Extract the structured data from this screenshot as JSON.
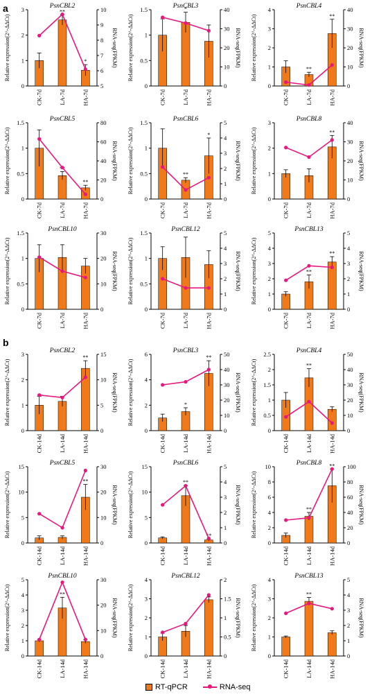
{
  "panels": {
    "a": "a",
    "b": "b"
  },
  "legend": {
    "bar": "RT-qPCR",
    "line": "RNA-seq"
  },
  "colors": {
    "bar": "#f07a1a",
    "line": "#e8177e",
    "axis": "#000000"
  },
  "left_axis_label": "Relative expression(2^-ΔΔCt)",
  "right_axis_label": "RNA-seq(FPKM)",
  "chart_data": [
    {
      "panel": "a",
      "type": "bar",
      "title": "PsnCBL2",
      "categories": [
        "CK-7d",
        "LA-7d",
        "HA-7d"
      ],
      "bars": [
        1.0,
        2.6,
        0.62
      ],
      "errors": [
        0.3,
        0.2,
        0.22
      ],
      "sig": [
        "",
        "**",
        "*"
      ],
      "ylim": [
        0,
        3
      ],
      "yticks": [
        0,
        1,
        2,
        3
      ],
      "y2lim": [
        5,
        10
      ],
      "y2ticks": [
        5,
        6,
        7,
        8,
        9,
        10
      ],
      "line": [
        8.3,
        9.7,
        6.1
      ]
    },
    {
      "panel": "a",
      "type": "bar",
      "title": "PsnCBL3",
      "categories": [
        "CK-7d",
        "LA-7d",
        "HA-7d"
      ],
      "bars": [
        1.0,
        1.25,
        0.88
      ],
      "errors": [
        0.32,
        0.2,
        0.32
      ],
      "sig": [
        "",
        "*",
        ""
      ],
      "ylim": [
        0,
        1.5
      ],
      "yticks": [
        0,
        0.5,
        1.0,
        1.5
      ],
      "y2lim": [
        0,
        40
      ],
      "y2ticks": [
        0,
        10,
        20,
        30,
        40
      ],
      "line": [
        36,
        33,
        29
      ]
    },
    {
      "panel": "a",
      "type": "bar",
      "title": "PsnCBL4",
      "categories": [
        "CK-7d",
        "LA-7d",
        "HA-7d"
      ],
      "bars": [
        1.0,
        0.6,
        2.75
      ],
      "errors": [
        0.32,
        0.12,
        0.75
      ],
      "sig": [
        "",
        "**",
        "**"
      ],
      "ylim": [
        0,
        4
      ],
      "yticks": [
        0,
        1,
        2,
        3,
        4
      ],
      "y2lim": [
        0,
        40
      ],
      "y2ticks": [
        0,
        10,
        20,
        30,
        40
      ],
      "line": [
        2,
        0.5,
        11
      ]
    },
    {
      "panel": "a",
      "type": "bar",
      "title": "PsnCBL5",
      "categories": [
        "CK-7d",
        "LA-7d",
        "HA-7d"
      ],
      "bars": [
        1.0,
        0.46,
        0.22
      ],
      "errors": [
        0.36,
        0.08,
        0.05
      ],
      "sig": [
        "",
        "**",
        "**"
      ],
      "ylim": [
        0,
        1.5
      ],
      "yticks": [
        0,
        0.5,
        1.0,
        1.5
      ],
      "y2lim": [
        0,
        80
      ],
      "y2ticks": [
        0,
        20,
        40,
        60,
        80
      ],
      "line": [
        63,
        33,
        5
      ]
    },
    {
      "panel": "a",
      "type": "bar",
      "title": "PsnCBL6",
      "categories": [
        "CK-7d",
        "LA-7d",
        "HA-7d"
      ],
      "bars": [
        1.0,
        0.37,
        0.85
      ],
      "errors": [
        0.38,
        0.05,
        0.35
      ],
      "sig": [
        "",
        "**",
        "*"
      ],
      "ylim": [
        0,
        1.5
      ],
      "yticks": [
        0,
        0.5,
        1.0,
        1.5
      ],
      "y2lim": [
        0,
        5
      ],
      "y2ticks": [
        0,
        1,
        2,
        3,
        4,
        5
      ],
      "line": [
        2.1,
        0.6,
        1.4
      ]
    },
    {
      "panel": "a",
      "type": "bar",
      "title": "PsnCBL8",
      "categories": [
        "CK-7d",
        "LA-7d",
        "HA-7d"
      ],
      "bars": [
        1.0,
        0.92,
        2.05
      ],
      "errors": [
        0.15,
        0.27,
        0.45
      ],
      "sig": [
        "",
        "",
        "**"
      ],
      "ylim": [
        0,
        3
      ],
      "yticks": [
        0,
        1,
        2,
        3
      ],
      "y2lim": [
        0,
        40
      ],
      "y2ticks": [
        0,
        10,
        20,
        30,
        40
      ],
      "line": [
        27,
        22,
        31
      ]
    },
    {
      "panel": "a",
      "type": "bar",
      "title": "PsnCBL10",
      "categories": [
        "CK-7d",
        "LA-7d",
        "HA-7d"
      ],
      "bars": [
        1.0,
        1.02,
        0.85
      ],
      "errors": [
        0.27,
        0.25,
        0.15
      ],
      "sig": [
        "",
        "",
        ""
      ],
      "ylim": [
        0,
        1.5
      ],
      "yticks": [
        0,
        0.5,
        1.0,
        1.5
      ],
      "y2lim": [
        0,
        30
      ],
      "y2ticks": [
        0,
        10,
        20,
        30
      ],
      "line": [
        20.5,
        15,
        12.5
      ]
    },
    {
      "panel": "a",
      "type": "bar",
      "title": "PsnCBL12",
      "categories": [
        "CK-7d",
        "LA-7d",
        "HA-7d"
      ],
      "bars": [
        1.0,
        1.02,
        0.88
      ],
      "errors": [
        0.23,
        0.4,
        0.27
      ],
      "sig": [
        "",
        "",
        ""
      ],
      "ylim": [
        0,
        1.5
      ],
      "yticks": [
        0,
        0.5,
        1.0,
        1.5
      ],
      "y2lim": [
        0,
        5
      ],
      "y2ticks": [
        0,
        1,
        2,
        3,
        4,
        5
      ],
      "line": [
        2.0,
        1.4,
        1.4
      ]
    },
    {
      "panel": "a",
      "type": "bar",
      "title": "PsnCBL13",
      "categories": [
        "CK-7d",
        "LA-7d",
        "HA-7d"
      ],
      "bars": [
        1.0,
        1.8,
        3.1
      ],
      "errors": [
        0.15,
        0.45,
        0.35
      ],
      "sig": [
        "",
        "**",
        "**"
      ],
      "ylim": [
        0,
        5
      ],
      "yticks": [
        0,
        1,
        2,
        3,
        4,
        5
      ],
      "y2lim": [
        0,
        5
      ],
      "y2ticks": [
        0,
        1,
        2,
        3,
        4,
        5
      ],
      "line": [
        1.9,
        2.85,
        2.75
      ]
    },
    {
      "panel": "b",
      "type": "bar",
      "title": "PsnCBL2",
      "categories": [
        "CK-14d",
        "LA-14d",
        "HA-14d"
      ],
      "bars": [
        1.0,
        1.15,
        2.45
      ],
      "errors": [
        0.35,
        0.2,
        0.3
      ],
      "sig": [
        "",
        "",
        "**"
      ],
      "ylim": [
        0,
        3
      ],
      "yticks": [
        0,
        1,
        2,
        3
      ],
      "y2lim": [
        0,
        15
      ],
      "y2ticks": [
        0,
        5,
        10,
        15
      ],
      "line": [
        7,
        6.5,
        10.5
      ]
    },
    {
      "panel": "b",
      "type": "bar",
      "title": "PsnCBL3",
      "categories": [
        "CK-14d",
        "LA-14d",
        "HA-14d"
      ],
      "bars": [
        1.0,
        1.5,
        4.5
      ],
      "errors": [
        0.3,
        0.3,
        1.0
      ],
      "sig": [
        "",
        "*",
        "**"
      ],
      "ylim": [
        0,
        6
      ],
      "yticks": [
        0,
        2,
        4,
        6
      ],
      "y2lim": [
        0,
        50
      ],
      "y2ticks": [
        0,
        10,
        20,
        30,
        40,
        50
      ],
      "line": [
        30,
        32,
        40
      ]
    },
    {
      "panel": "b",
      "type": "bar",
      "title": "PsnCBL4",
      "categories": [
        "CK-14d",
        "LA-14d",
        "HA-14d"
      ],
      "bars": [
        1.0,
        1.73,
        0.7
      ],
      "errors": [
        0.25,
        0.3,
        0.08
      ],
      "sig": [
        "",
        "**",
        ""
      ],
      "ylim": [
        0,
        2.5
      ],
      "yticks": [
        0,
        0.5,
        1.0,
        1.5,
        2.0,
        2.5
      ],
      "y2lim": [
        0,
        50
      ],
      "y2ticks": [
        0,
        10,
        20,
        30,
        40,
        50
      ],
      "line": [
        9,
        19,
        5
      ]
    },
    {
      "panel": "b",
      "type": "bar",
      "title": "PsnCBL5",
      "categories": [
        "CK-14d",
        "LA-14d",
        "HA-14d"
      ],
      "bars": [
        1.0,
        1.1,
        9.0
      ],
      "errors": [
        0.4,
        0.3,
        2.5
      ],
      "sig": [
        "",
        "",
        "**"
      ],
      "ylim": [
        0,
        15
      ],
      "yticks": [
        0,
        5,
        10,
        15
      ],
      "y2lim": [
        0,
        30
      ],
      "y2ticks": [
        0,
        10,
        20,
        30
      ],
      "line": [
        11.5,
        6,
        28.5
      ]
    },
    {
      "panel": "b",
      "type": "bar",
      "title": "PsnCBL6",
      "categories": [
        "CK-14d",
        "LA-14d",
        "HA-14d"
      ],
      "bars": [
        1.0,
        9.3,
        0.6
      ],
      "errors": [
        0.2,
        2.0,
        0.2
      ],
      "sig": [
        "",
        "**",
        "**"
      ],
      "ylim": [
        0,
        15
      ],
      "yticks": [
        0,
        5,
        10,
        15
      ],
      "y2lim": [
        0,
        5
      ],
      "y2ticks": [
        0,
        1,
        2,
        3,
        4,
        5
      ],
      "line": [
        2.5,
        3.75,
        0.3
      ]
    },
    {
      "panel": "b",
      "type": "bar",
      "title": "PsnCBL8",
      "categories": [
        "CK-14d",
        "LA-14d",
        "HA-14d"
      ],
      "bars": [
        1.0,
        3.5,
        7.5
      ],
      "errors": [
        0.3,
        0.5,
        2.2
      ],
      "sig": [
        "",
        "**",
        "**"
      ],
      "ylim": [
        0,
        10
      ],
      "yticks": [
        0,
        2,
        4,
        6,
        8,
        10
      ],
      "y2lim": [
        0,
        100
      ],
      "y2ticks": [
        0,
        20,
        40,
        60,
        80,
        100
      ],
      "line": [
        30,
        33,
        97
      ]
    },
    {
      "panel": "b",
      "type": "bar",
      "title": "PsnCBL10",
      "categories": [
        "CK-14d",
        "LA-14d",
        "HA-14d"
      ],
      "bars": [
        1.0,
        3.15,
        0.95
      ],
      "errors": [
        0.08,
        0.7,
        0.12
      ],
      "sig": [
        "",
        "**",
        ""
      ],
      "ylim": [
        0,
        5
      ],
      "yticks": [
        0,
        1,
        2,
        3,
        4,
        5
      ],
      "y2lim": [
        0,
        30
      ],
      "y2ticks": [
        0,
        10,
        20,
        30
      ],
      "line": [
        6.5,
        29,
        6.5
      ]
    },
    {
      "panel": "b",
      "type": "bar",
      "title": "PsnCBL12",
      "categories": [
        "CK-14d",
        "LA-14d",
        "HA-14d"
      ],
      "bars": [
        1.0,
        1.3,
        2.95
      ],
      "errors": [
        0.2,
        0.3,
        0.15
      ],
      "sig": [
        "",
        "",
        ""
      ],
      "ylim": [
        0,
        4
      ],
      "yticks": [
        0,
        1,
        2,
        3,
        4
      ],
      "y2lim": [
        0,
        2.0
      ],
      "y2ticks": [
        0,
        0.5,
        1.0,
        1.5,
        2.0
      ],
      "line": [
        0.62,
        0.85,
        1.6
      ]
    },
    {
      "panel": "b",
      "type": "bar",
      "title": "PsnCBL13",
      "categories": [
        "CK-14d",
        "LA-14d",
        "HA-14d"
      ],
      "bars": [
        1.0,
        2.87,
        1.22
      ],
      "errors": [
        0.05,
        0.2,
        0.1
      ],
      "sig": [
        "",
        "**",
        ""
      ],
      "ylim": [
        0,
        4
      ],
      "yticks": [
        0,
        1,
        2,
        3,
        4
      ],
      "y2lim": [
        0,
        5
      ],
      "y2ticks": [
        0,
        1,
        2,
        3,
        4,
        5
      ],
      "line": [
        2.8,
        3.45,
        3.1
      ]
    }
  ]
}
